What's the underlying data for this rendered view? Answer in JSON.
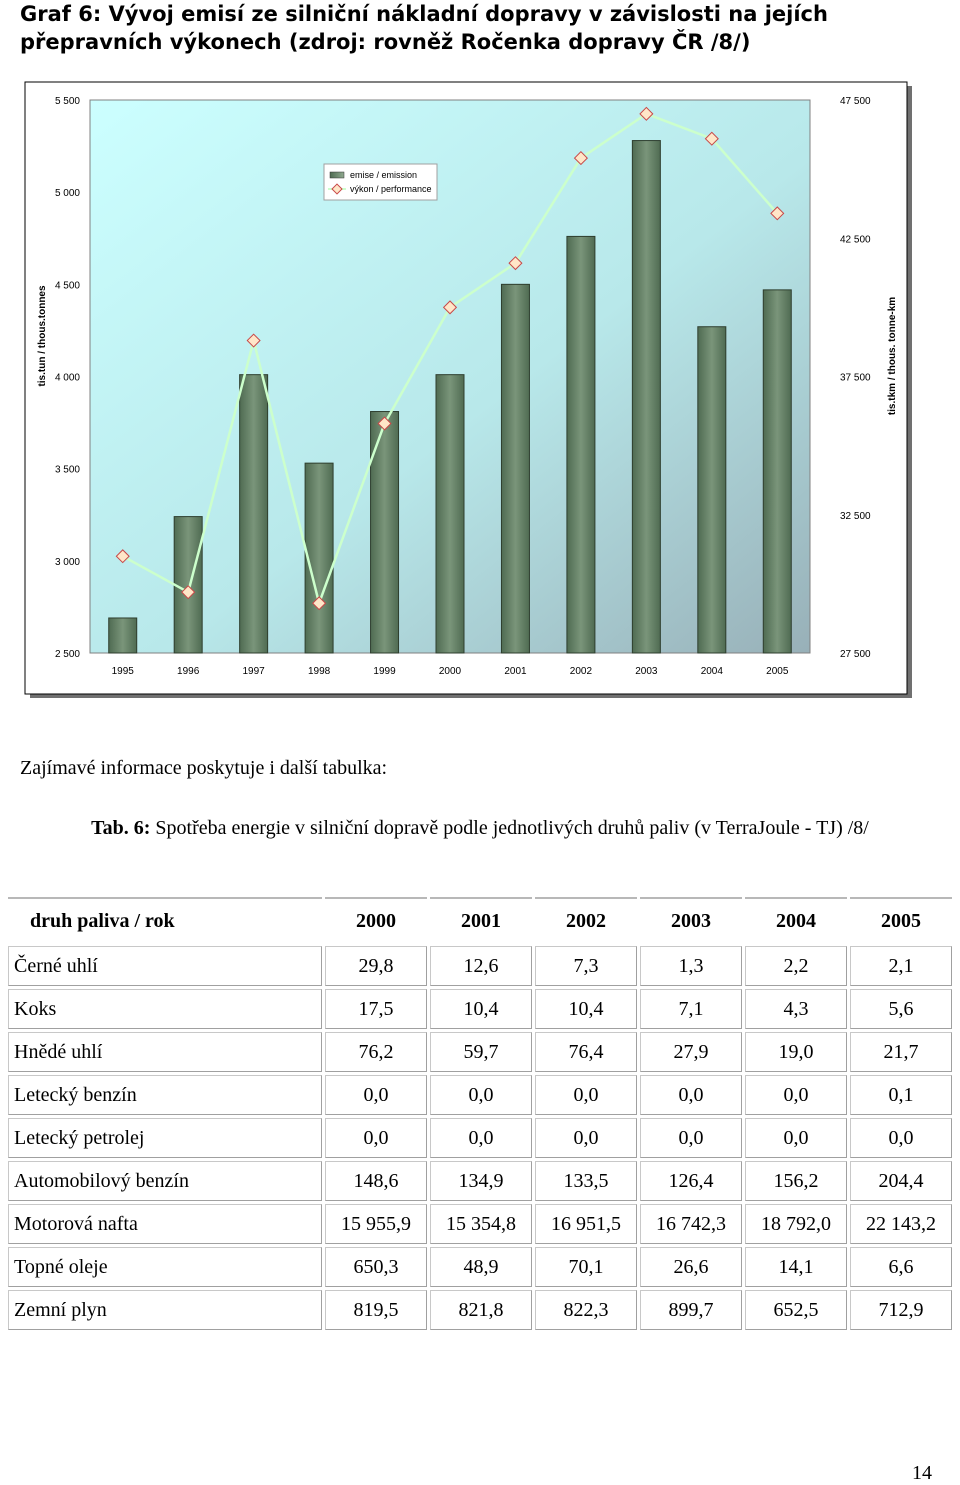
{
  "title": "Graf 6: Vývoj emisí ze silniční nákladní dopravy v závislosti na jejích přepravních výkonech (zdroj: rovněž Ročenka dopravy ČR /8/)",
  "chart_data": {
    "type": "bar+line",
    "categories": [
      "1995",
      "1996",
      "1997",
      "1998",
      "1999",
      "2000",
      "2001",
      "2002",
      "2003",
      "2004",
      "2005"
    ],
    "series": [
      {
        "name": "emise / emission",
        "type": "bar",
        "axis": "left",
        "values": [
          2690,
          3240,
          4010,
          3530,
          3810,
          4010,
          4500,
          4760,
          5280,
          4270,
          4470
        ]
      },
      {
        "name": "výkon / performance",
        "type": "line",
        "axis": "right",
        "values": [
          31000,
          29700,
          38800,
          29300,
          35800,
          40000,
          41600,
          45400,
          47000,
          46100,
          43400
        ]
      }
    ],
    "y_left": {
      "label": "tis.tun / thous.tonnes",
      "ylim": [
        2500,
        5500
      ],
      "ticks": [
        "2 500",
        "3 000",
        "3 500",
        "4 000",
        "4 500",
        "5 000",
        "5 500"
      ]
    },
    "y_right": {
      "label": "tis.tkm / thous. tonne-km",
      "ylim": [
        27500,
        47500
      ],
      "ticks": [
        "27 500",
        "32 500",
        "37 500",
        "42 500",
        "47 500"
      ]
    },
    "legend": {
      "position": "top-center",
      "items": [
        "emise / emission",
        "výkon / performance"
      ]
    },
    "grid": false,
    "colors": {
      "bar": "#6b8568",
      "line": "#ccffcc",
      "marker_fill": "#ffe6c8",
      "marker_stroke": "#c84848",
      "plot_bg_top": "#c8ffff",
      "plot_bg_bottom": "#9eb8c0"
    }
  },
  "intro_text": "Zajímavé informace poskytuje i další tabulka:",
  "table_caption": {
    "label": "Tab. 6:",
    "text": "Spotřeba energie v silniční dopravě podle jednotlivých druhů paliv (v TerraJoule - TJ) /8/"
  },
  "table": {
    "header": [
      "druh paliva / rok",
      "2000",
      "2001",
      "2002",
      "2003",
      "2004",
      "2005"
    ],
    "rows": [
      [
        "Černé uhlí",
        "29,8",
        "12,6",
        "7,3",
        "1,3",
        "2,2",
        "2,1"
      ],
      [
        "Koks",
        "17,5",
        "10,4",
        "10,4",
        "7,1",
        "4,3",
        "5,6"
      ],
      [
        "Hnědé uhlí",
        "76,2",
        "59,7",
        "76,4",
        "27,9",
        "19,0",
        "21,7"
      ],
      [
        "Letecký benzín",
        "0,0",
        "0,0",
        "0,0",
        "0,0",
        "0,0",
        "0,1"
      ],
      [
        "Letecký petrolej",
        "0,0",
        "0,0",
        "0,0",
        "0,0",
        "0,0",
        "0,0"
      ],
      [
        "Automobilový benzín",
        "148,6",
        "134,9",
        "133,5",
        "126,4",
        "156,2",
        "204,4"
      ],
      [
        "Motorová nafta",
        "15 955,9",
        "15 354,8",
        "16 951,5",
        "16 742,3",
        "18 792,0",
        "22 143,2"
      ],
      [
        "Topné oleje",
        "650,3",
        "48,9",
        "70,1",
        "26,6",
        "14,1",
        "6,6"
      ],
      [
        "Zemní plyn",
        "819,5",
        "821,8",
        "822,3",
        "899,7",
        "652,5",
        "712,9"
      ]
    ]
  },
  "page_number": "14"
}
